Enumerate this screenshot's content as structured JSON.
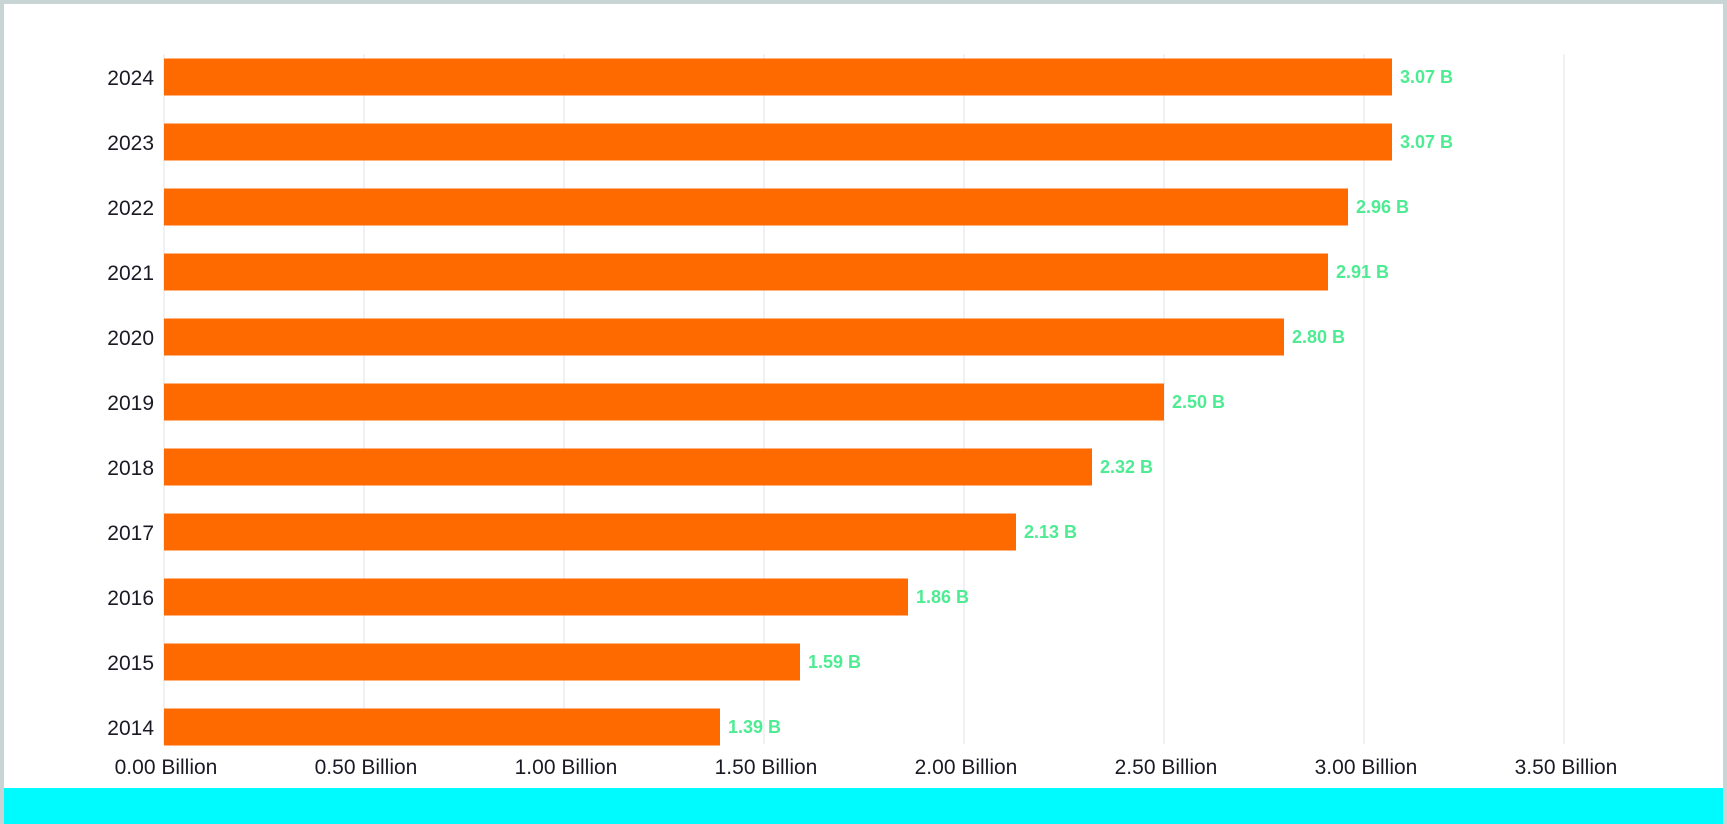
{
  "chart_data": {
    "type": "bar",
    "orientation": "horizontal",
    "categories": [
      "2024",
      "2023",
      "2022",
      "2021",
      "2020",
      "2019",
      "2018",
      "2017",
      "2016",
      "2015",
      "2014"
    ],
    "values": [
      3.07,
      3.07,
      2.96,
      2.91,
      2.8,
      2.5,
      2.32,
      2.13,
      1.86,
      1.59,
      1.39
    ],
    "data_labels": [
      "3.07 B",
      "3.07 B",
      "2.96 B",
      "2.91 B",
      "2.80 B",
      "2.50 B",
      "2.32 B",
      "2.13 B",
      "1.86 B",
      "1.59 B",
      "1.39 B"
    ],
    "x_ticks": [
      0,
      0.5,
      1,
      1.5,
      2,
      2.5,
      3,
      3.5
    ],
    "x_tick_labels": [
      "0.00 Billion",
      "0.50 Billion",
      "1.00 Billion",
      "1.50 Billion",
      "2.00 Billion",
      "2.50 Billion",
      "3.00 Billion",
      "3.50 Billion"
    ],
    "xlim": [
      0,
      3.5
    ],
    "title": "",
    "xlabel": "",
    "ylabel": "",
    "grid": "vertical",
    "colors": {
      "bar": "#ff6a00",
      "data_label": "#4eec92",
      "grid": "#e8eef0",
      "footer_band": "#00fbff",
      "border": "#c9d5d5"
    }
  }
}
